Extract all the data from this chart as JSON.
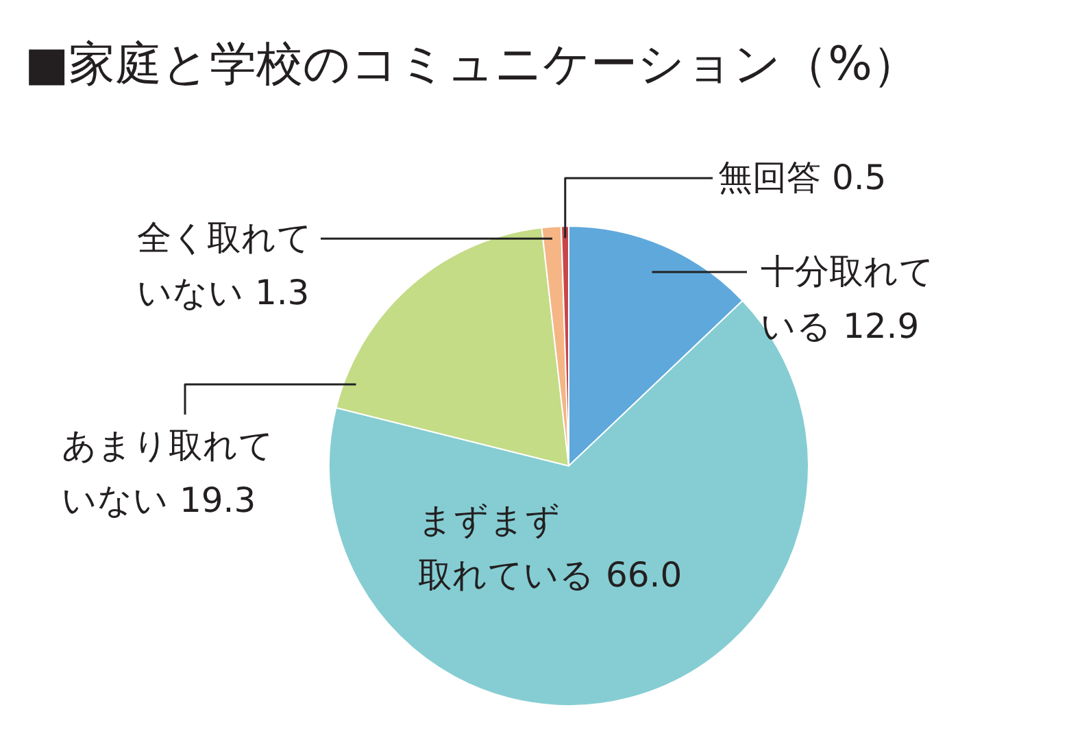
{
  "chart_data": {
    "type": "pie",
    "title": "■家庭と学校のコミュニケーション（%）",
    "categories": [
      "十分取れている",
      "まずまず取れている",
      "あまり取れていない",
      "全く取れていない",
      "無回答"
    ],
    "values": [
      12.9,
      66.0,
      19.3,
      1.3,
      0.5
    ],
    "value_labels": [
      "12.9",
      "66.0",
      "19.3",
      "1.3",
      "0.5"
    ],
    "colors": [
      "#5fa8dc",
      "#85cdd3",
      "#c4dc86",
      "#f5b585",
      "#c8464a"
    ],
    "legend": false
  }
}
